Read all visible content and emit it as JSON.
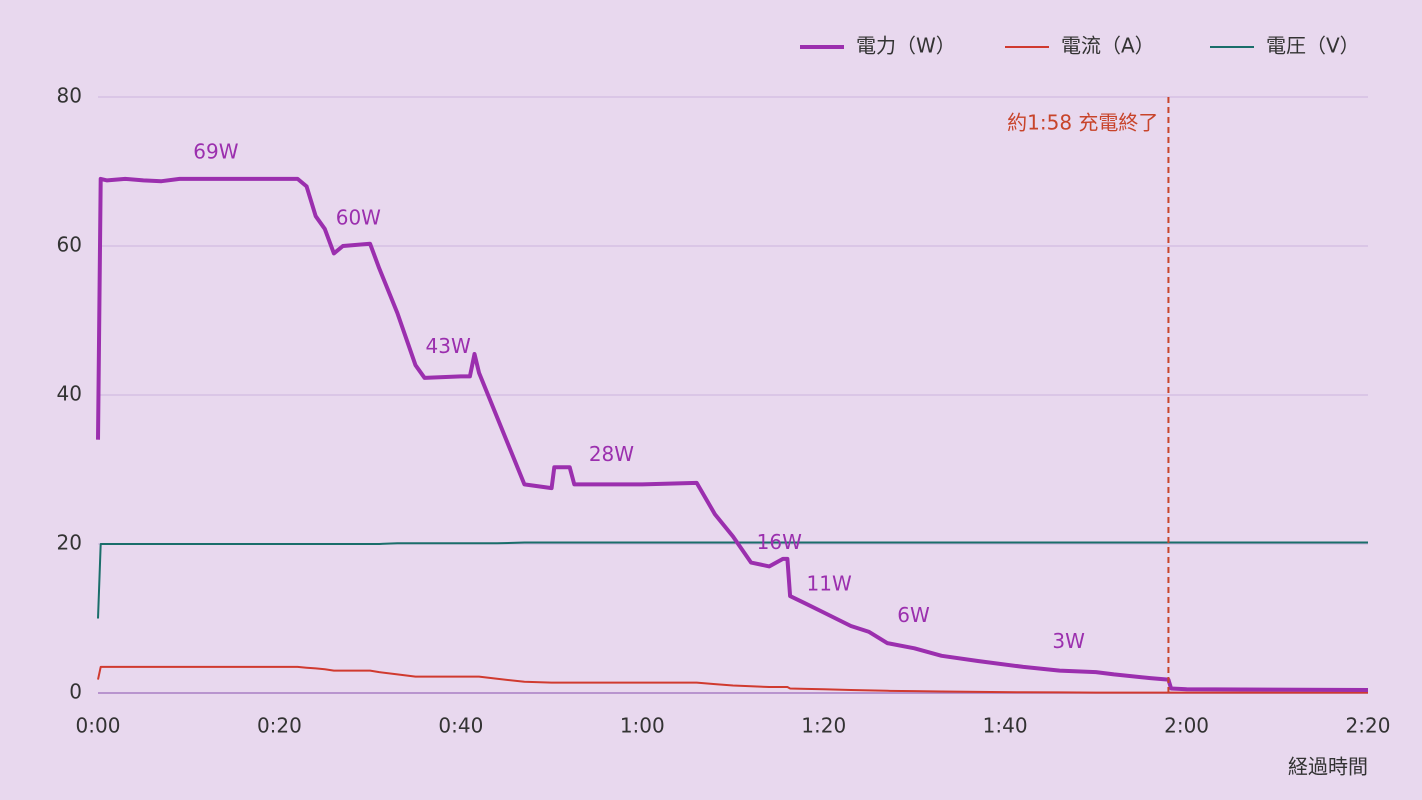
{
  "chart_data": {
    "type": "line",
    "x_label": "経過時間",
    "x": [
      0,
      0.3,
      1,
      3,
      5,
      7,
      9,
      22,
      23,
      24,
      25,
      26,
      27,
      30,
      31,
      33,
      35,
      36,
      40,
      41,
      41.5,
      42,
      44,
      47,
      50,
      50.3,
      52,
      52.5,
      60,
      66,
      68,
      70,
      72,
      74,
      75.5,
      76,
      76.3,
      78,
      80,
      83,
      85,
      87,
      90,
      93,
      97,
      102,
      106,
      110,
      112,
      116,
      118,
      118.3,
      120,
      140
    ],
    "series": [
      {
        "name": "電力（W）",
        "color": "#9b2fae",
        "width": 4,
        "values": [
          34,
          69,
          68.8,
          69,
          68.8,
          68.7,
          69,
          69,
          68,
          64,
          62.3,
          59,
          60,
          60.3,
          57,
          51,
          44,
          42.3,
          42.5,
          42.5,
          45.5,
          43,
          37,
          28,
          27.5,
          30.3,
          30.3,
          28,
          28,
          28.2,
          24,
          21,
          17.5,
          17,
          18,
          18,
          13,
          12,
          10.8,
          9,
          8.2,
          6.7,
          6,
          5,
          4.3,
          3.5,
          3,
          2.8,
          2.5,
          2,
          1.8,
          0.6,
          0.5,
          0.4
        ]
      },
      {
        "name": "電流（A）",
        "color": "#d03a2f",
        "width": 2,
        "values": [
          1.8,
          3.5,
          3.5,
          3.5,
          3.5,
          3.5,
          3.5,
          3.5,
          3.4,
          3.3,
          3.2,
          3.0,
          3.0,
          3.0,
          2.8,
          2.5,
          2.2,
          2.2,
          2.2,
          2.2,
          2.2,
          2.2,
          1.9,
          1.5,
          1.4,
          1.4,
          1.4,
          1.4,
          1.4,
          1.4,
          1.2,
          1.0,
          0.9,
          0.8,
          0.8,
          0.8,
          0.6,
          0.55,
          0.5,
          0.4,
          0.35,
          0.3,
          0.25,
          0.2,
          0.15,
          0.1,
          0.08,
          0.05,
          0.05,
          0.05,
          0.05,
          0.05,
          0.05,
          0.05
        ]
      },
      {
        "name": "電圧（V）",
        "color": "#1a6e6a",
        "width": 2,
        "values": [
          10,
          20,
          20,
          20,
          20,
          20,
          20,
          20,
          20,
          20,
          20,
          20,
          20,
          20,
          20,
          20.1,
          20.1,
          20.1,
          20.1,
          20.1,
          20.1,
          20.1,
          20.1,
          20.2,
          20.2,
          20.2,
          20.2,
          20.2,
          20.2,
          20.2,
          20.2,
          20.2,
          20.2,
          20.2,
          20.2,
          20.2,
          20.2,
          20.2,
          20.2,
          20.2,
          20.2,
          20.2,
          20.2,
          20.2,
          20.2,
          20.2,
          20.2,
          20.2,
          20.2,
          20.2,
          20.2,
          20.2,
          20.2,
          20.2
        ]
      }
    ],
    "xlim": [
      0,
      140
    ],
    "xticks": [
      {
        "value": 0,
        "label": "0:00"
      },
      {
        "value": 20,
        "label": "0:20"
      },
      {
        "value": 40,
        "label": "0:40"
      },
      {
        "value": 60,
        "label": "1:00"
      },
      {
        "value": 80,
        "label": "1:20"
      },
      {
        "value": 100,
        "label": "1:40"
      },
      {
        "value": 120,
        "label": "2:00"
      },
      {
        "value": 140,
        "label": "2:20"
      }
    ],
    "ylim": [
      0,
      80
    ],
    "yticks": [
      0,
      20,
      40,
      60,
      80
    ],
    "grid": true,
    "legend": "top-right",
    "annotations": [
      {
        "text": "69W",
        "x": 13,
        "y": 72.5
      },
      {
        "text": "60W",
        "x": 28.7,
        "y": 63.6
      },
      {
        "text": "43W",
        "x": 38.6,
        "y": 46.4
      },
      {
        "text": "28W",
        "x": 56.6,
        "y": 31.9
      },
      {
        "text": "16W",
        "x": 75.1,
        "y": 20.1
      },
      {
        "text": "11W",
        "x": 80.6,
        "y": 14.5
      },
      {
        "text": "6W",
        "x": 89.9,
        "y": 10.3
      },
      {
        "text": "3W",
        "x": 107,
        "y": 6.8
      }
    ],
    "marker": {
      "x": 118,
      "label": "約1:58 充電終了",
      "color": "#c8442a"
    }
  }
}
